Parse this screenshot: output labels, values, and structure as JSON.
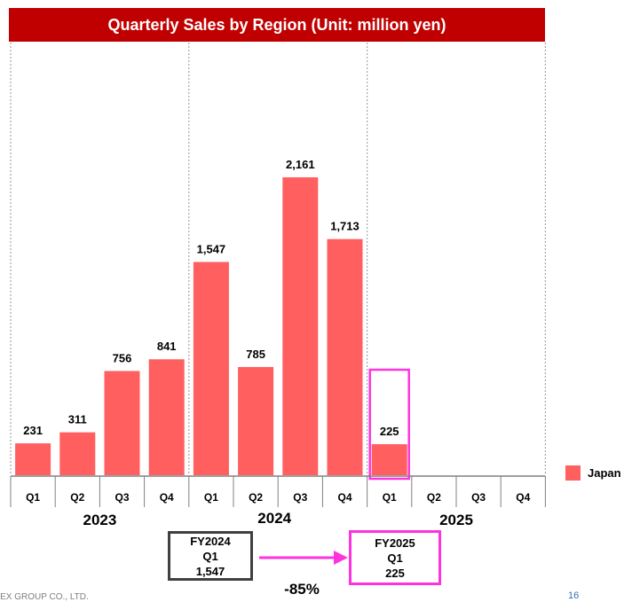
{
  "chart_data": {
    "type": "bar",
    "title": "Quarterly Sales by Region (Unit: million yen)",
    "years": [
      "2023",
      "2024",
      "2025"
    ],
    "categories": [
      "Q1",
      "Q2",
      "Q3",
      "Q4",
      "Q1",
      "Q2",
      "Q3",
      "Q4",
      "Q1",
      "Q2",
      "Q3",
      "Q4"
    ],
    "series": [
      {
        "name": "Japan",
        "color": "#ff5f5f",
        "values": [
          231,
          311,
          756,
          841,
          1547,
          785,
          2161,
          1713,
          225,
          null,
          null,
          null
        ],
        "labels": [
          "231",
          "311",
          "756",
          "841",
          "1,547",
          "785",
          "2,161",
          "1,713",
          "225",
          "",
          "",
          ""
        ]
      }
    ],
    "ylim": [
      0,
      2700
    ],
    "grid": false,
    "legend": "right",
    "highlight_index": 8,
    "highlight_color": "#ff33dd"
  },
  "comparison": {
    "previous": {
      "label": "FY2024",
      "quarter": "Q1",
      "value": "1,547"
    },
    "current": {
      "label": "FY2025",
      "quarter": "Q1",
      "value": "225"
    },
    "change": "-85%",
    "arrow_color": "#ff33dd"
  },
  "footer": {
    "company": "TEX GROUP CO., LTD.",
    "page": "16"
  },
  "colors": {
    "title_bar": "#c00000",
    "title_text": "#ffffff"
  }
}
